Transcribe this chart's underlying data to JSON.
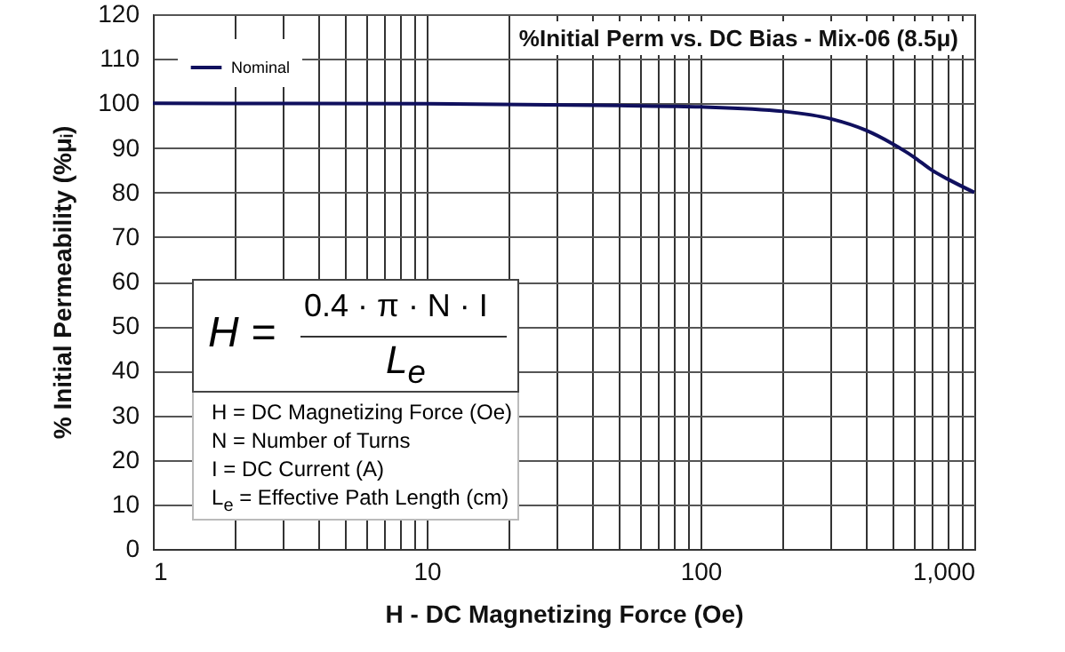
{
  "chart_data": {
    "type": "line",
    "title": "%Initial Perm vs. DC Bias - Mix-06  (8.5μ)",
    "xlabel": "H - DC Magnetizing Force (Oe)",
    "ylabel": "% Initial Permeability (%μᵢ)",
    "x": [
      1,
      10,
      50,
      100,
      200,
      300,
      400,
      500,
      600,
      700,
      800,
      1000
    ],
    "series": [
      {
        "name": "Nominal",
        "color": "#10105e",
        "values": [
          100,
          99.9,
          99.5,
          99.2,
          98.2,
          96.5,
          94,
          91,
          88,
          85,
          83,
          80
        ]
      }
    ],
    "log": "x",
    "xlim": [
      1,
      1000
    ],
    "xticks": [
      1,
      {
        "value": 2,
        "label": null
      },
      {
        "value": 3,
        "label": null
      },
      {
        "value": 4,
        "label": null
      },
      {
        "value": 5,
        "label": null
      },
      {
        "value": 6,
        "label": null
      },
      {
        "value": 7,
        "label": null
      },
      {
        "value": 8,
        "label": null
      },
      {
        "value": 9,
        "label": null
      },
      10,
      {
        "value": 20,
        "label": null
      },
      {
        "value": 30,
        "label": null
      },
      {
        "value": 40,
        "label": null
      },
      {
        "value": 50,
        "label": null
      },
      {
        "value": 60,
        "label": null
      },
      {
        "value": 70,
        "label": null
      },
      {
        "value": 80,
        "label": null
      },
      {
        "value": 90,
        "label": null
      },
      100,
      {
        "value": 200,
        "label": null
      },
      {
        "value": 300,
        "label": null
      },
      {
        "value": 400,
        "label": null
      },
      {
        "value": 500,
        "label": null
      },
      {
        "value": 600,
        "label": null
      },
      {
        "value": 700,
        "label": null
      },
      {
        "value": 800,
        "label": null
      },
      {
        "value": 900,
        "label": null
      },
      {
        "value": 1000,
        "label": "1,000"
      }
    ],
    "ylim": [
      0,
      120
    ],
    "yticks": [
      0,
      10,
      20,
      30,
      40,
      50,
      60,
      70,
      80,
      90,
      100,
      110,
      120
    ],
    "grid": true,
    "legend": "top left",
    "marker": "none",
    "line_style": "solid",
    "annotations": [
      "H =",
      "0.4 · π · N · I",
      "L$_{e}$",
      "H = DC Magnetizing Force (Oe)",
      "N = Number of Turns",
      "I = DC Current (A)",
      "L$_{e}$ = Effective Path Length (cm)"
    ]
  }
}
